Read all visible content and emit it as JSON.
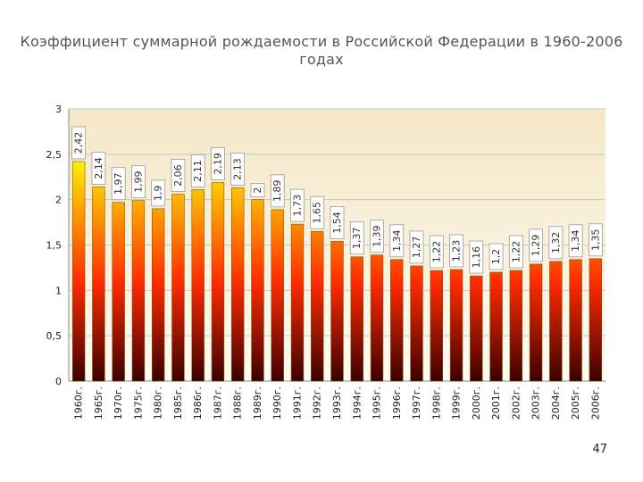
{
  "slide": {
    "title": "Коэффициент суммарной рождаемости в Российской Федерации в 1960-2006 годах",
    "page_number": "47"
  },
  "chart_data": {
    "type": "bar",
    "title": "Коэффициент суммарной рождаемости в Российской Федерации в 1960-2006 годах",
    "xlabel": "",
    "ylabel": "",
    "ylim": [
      0,
      3
    ],
    "yticks": [
      0,
      0.5,
      1,
      1.5,
      2,
      2.5,
      3
    ],
    "ytick_labels": [
      "0",
      "0,5",
      "1",
      "1,5",
      "2",
      "2,5",
      "3"
    ],
    "grid": true,
    "legend": "none",
    "categories": [
      "1960г.",
      "1965г.",
      "1970г.",
      "1975г.",
      "1980г.",
      "1985г.",
      "1986г.",
      "1987г.",
      "1988г.",
      "1989г.",
      "1990г.",
      "1991г.",
      "1992г.",
      "1993г.",
      "1994г.",
      "1995г.",
      "1996г.",
      "1997г.",
      "1998г.",
      "1999г.",
      "2000г.",
      "2001г.",
      "2002г.",
      "2003г.",
      "2004г.",
      "2005г.",
      "2006г."
    ],
    "values": [
      2.42,
      2.14,
      1.97,
      1.99,
      1.9,
      2.06,
      2.11,
      2.19,
      2.13,
      2.0,
      1.89,
      1.73,
      1.65,
      1.54,
      1.37,
      1.39,
      1.34,
      1.27,
      1.22,
      1.23,
      1.16,
      1.2,
      1.22,
      1.29,
      1.32,
      1.34,
      1.35
    ],
    "data_labels": [
      "2,42",
      "2,14",
      "1,97",
      "1,99",
      "1,9",
      "2,06",
      "2,11",
      "2,19",
      "2,13",
      "2",
      "1,89",
      "1,73",
      "1,65",
      "1,54",
      "1,37",
      "1,39",
      "1,34",
      "1,27",
      "1,22",
      "1,23",
      "1,16",
      "1,2",
      "1,22",
      "1,29",
      "1,32",
      "1,34",
      "1,35"
    ],
    "colors": {
      "bar_top": "#ffee00",
      "bar_mid": "#ff2a00",
      "bar_bottom": "#3a0000",
      "bar_outline": "#7a5a00",
      "plot_bg_top": "#f5e8c8",
      "plot_bg_bottom": "#fdfaf1",
      "gridline": "#c8c8c8",
      "label_box_border": "#9a9a9a"
    }
  }
}
